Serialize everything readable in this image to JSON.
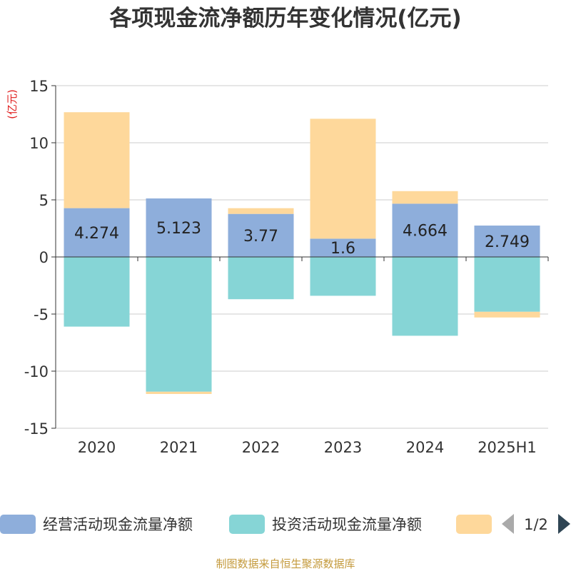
{
  "chart_data": {
    "type": "bar",
    "stacked": true,
    "title": "各项现金流净额历年变化情况(亿元)",
    "unit_label": "(亿元)",
    "categories": [
      "2020",
      "2021",
      "2022",
      "2023",
      "2024",
      "2025H1"
    ],
    "ylim": [
      -15,
      15
    ],
    "yticks": [
      15,
      10,
      5,
      0,
      -5,
      -10,
      -15
    ],
    "grid": true,
    "series": [
      {
        "name": "经营活动现金流量净额",
        "color": "#8eaedb",
        "values": [
          4.274,
          5.123,
          3.77,
          1.6,
          4.664,
          2.749
        ],
        "labels": [
          "4.274",
          "5.123",
          "3.77",
          "1.6",
          "4.664",
          "2.749"
        ]
      },
      {
        "name": "投资活动现金流量净额",
        "color": "#86d5d6",
        "values": [
          -6.1,
          -11.8,
          -3.7,
          -3.4,
          -6.9,
          -4.8
        ]
      },
      {
        "name": "",
        "color": "#fed89b",
        "values": [
          8.4,
          -0.2,
          0.5,
          10.5,
          1.1,
          -0.5
        ]
      }
    ],
    "legend": {
      "placement": "bottom",
      "page": "1/2"
    }
  },
  "source": "制图数据来自恒生聚源数据库"
}
